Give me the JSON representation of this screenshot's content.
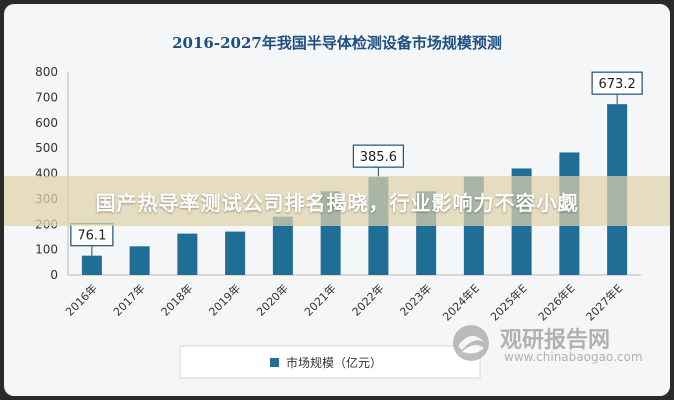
{
  "chart_data": {
    "type": "bar",
    "title": "2016-2027年我国半导体检测设备市场规模预测",
    "categories": [
      "2016年",
      "2017年",
      "2018年",
      "2019年",
      "2020年",
      "2021年",
      "2022年",
      "2023年",
      "2024年E",
      "2025年E",
      "2026年E",
      "2027年E"
    ],
    "series": [
      {
        "name": "市场规模（亿元）",
        "values": [
          76.1,
          113,
          163,
          171,
          230,
          330,
          385.6,
          330,
          388,
          420,
          483,
          673.2
        ]
      }
    ],
    "data_labels": [
      {
        "index": 0,
        "text": "76.1"
      },
      {
        "index": 6,
        "text": "385.6"
      },
      {
        "index": 11,
        "text": "673.2"
      }
    ],
    "y_ticks": [
      "0",
      "100",
      "200",
      "300",
      "400",
      "500",
      "600",
      "700",
      "800"
    ],
    "ylim": [
      0,
      800
    ],
    "grid": false,
    "legend_position": "bottom",
    "colors": {
      "bar": "#1f6e96",
      "title": "#1d4f80"
    }
  },
  "overlay": {
    "banner_text": "国产热导率测试公司排名揭晓，行业影响力不容小觑"
  },
  "watermark": {
    "brand_cn": "观研报告网",
    "brand_en": "www.chinabaogao.com"
  }
}
